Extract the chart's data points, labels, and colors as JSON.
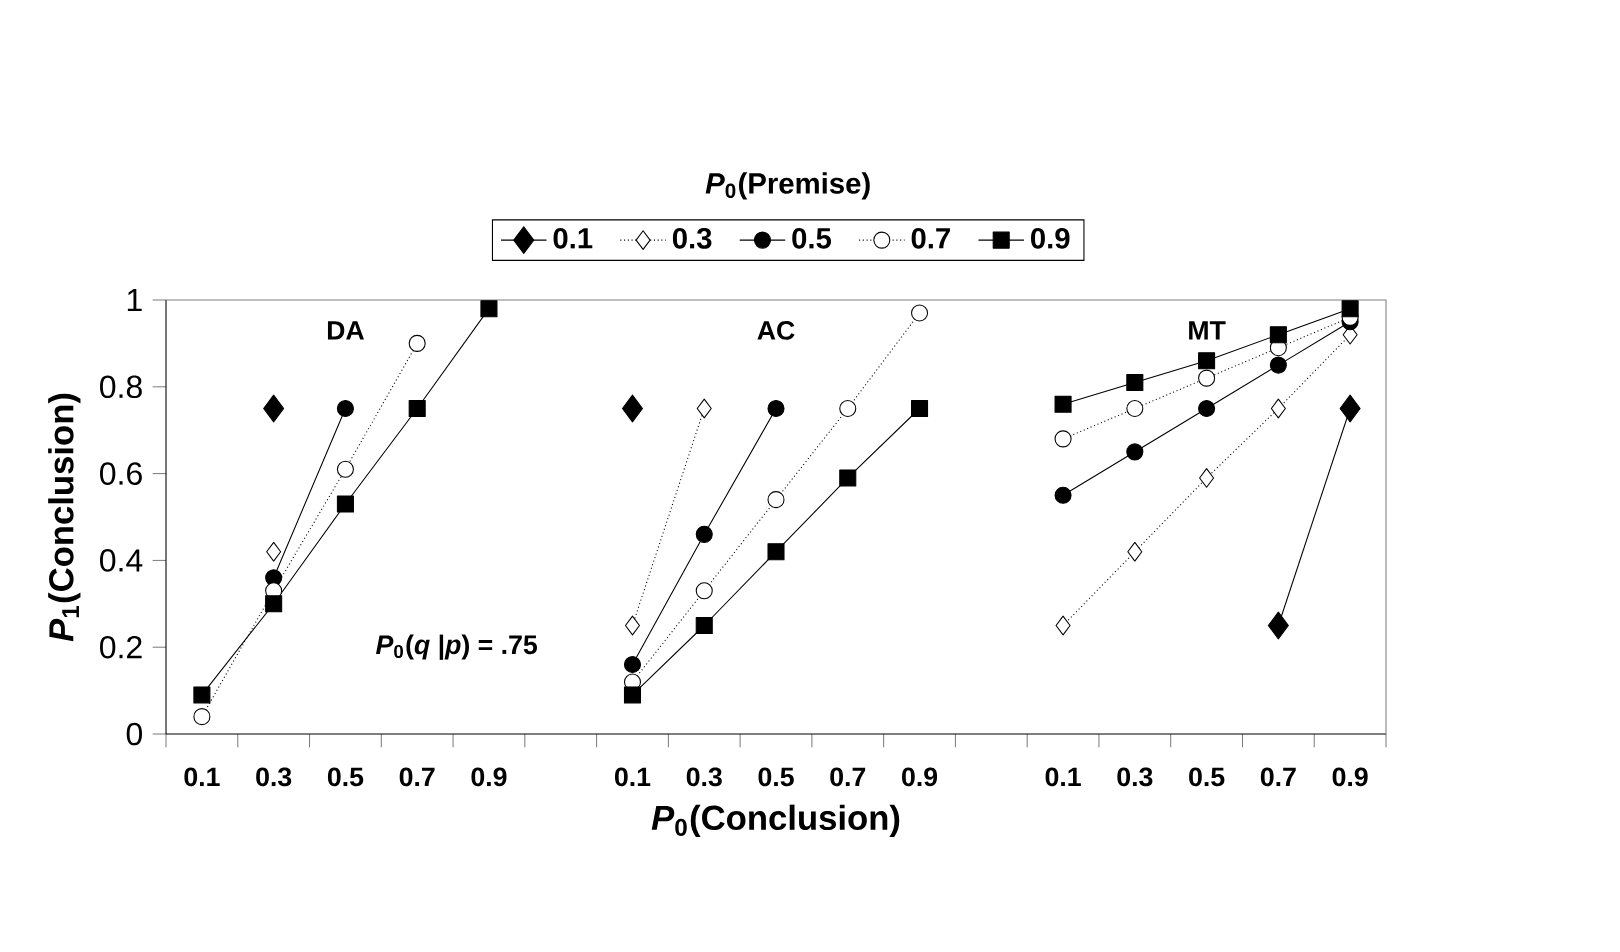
{
  "chart_data": {
    "type": "line",
    "xlabel": "*P*$_{0}$(Conclusion)",
    "ylabel": "*P*$_{1}$(Conclusion)",
    "legend_title": "*P*$_{0}$(Premise)",
    "legend": "top",
    "annotations": [
      "DA",
      "AC",
      "MT",
      "*P*$_{0}$(*q* |*p*) = .75"
    ],
    "categories": [
      "0.1",
      "0.3",
      "0.5",
      "0.7",
      "0.9",
      null,
      "0.1",
      "0.3",
      "0.5",
      "0.7",
      "0.9",
      null,
      "0.1",
      "0.3",
      "0.5",
      "0.7",
      "0.9"
    ],
    "ylim": [
      0,
      1
    ],
    "yticks": [
      0,
      0.2,
      0.4,
      0.6,
      0.8,
      1
    ],
    "series": [
      {
        "name": "0.1",
        "color": "#000000",
        "marker": "diamond",
        "line_style": "solid",
        "values": [
          null,
          0.75,
          null,
          null,
          null,
          null,
          0.75,
          null,
          null,
          null,
          null,
          null,
          null,
          null,
          null,
          0.25,
          0.75
        ]
      },
      {
        "name": "0.3",
        "color": "#000000",
        "marker": "diamond",
        "line_style": "dotted",
        "values": [
          null,
          0.42,
          null,
          null,
          null,
          null,
          0.25,
          0.75,
          null,
          null,
          null,
          null,
          0.25,
          0.42,
          0.59,
          0.75,
          0.92
        ]
      },
      {
        "name": "0.5",
        "color": "#000000",
        "marker": "circle",
        "line_style": "solid",
        "values": [
          null,
          0.36,
          0.75,
          null,
          null,
          null,
          0.16,
          0.46,
          0.75,
          null,
          null,
          null,
          0.55,
          0.65,
          0.75,
          0.85,
          0.95
        ]
      },
      {
        "name": "0.7",
        "color": "#000000",
        "marker": "circle",
        "line_style": "dotted",
        "values": [
          0.04,
          0.33,
          0.61,
          0.9,
          null,
          null,
          0.12,
          0.33,
          0.54,
          0.75,
          0.97,
          null,
          0.68,
          0.75,
          0.82,
          0.89,
          0.96
        ]
      },
      {
        "name": "0.9",
        "color": "#000000",
        "marker": "square",
        "line_style": "solid",
        "values": [
          0.09,
          0.3,
          0.53,
          0.75,
          0.98,
          null,
          0.09,
          0.25,
          0.42,
          0.59,
          0.75,
          null,
          0.76,
          0.81,
          0.86,
          0.92,
          0.98
        ]
      }
    ]
  }
}
